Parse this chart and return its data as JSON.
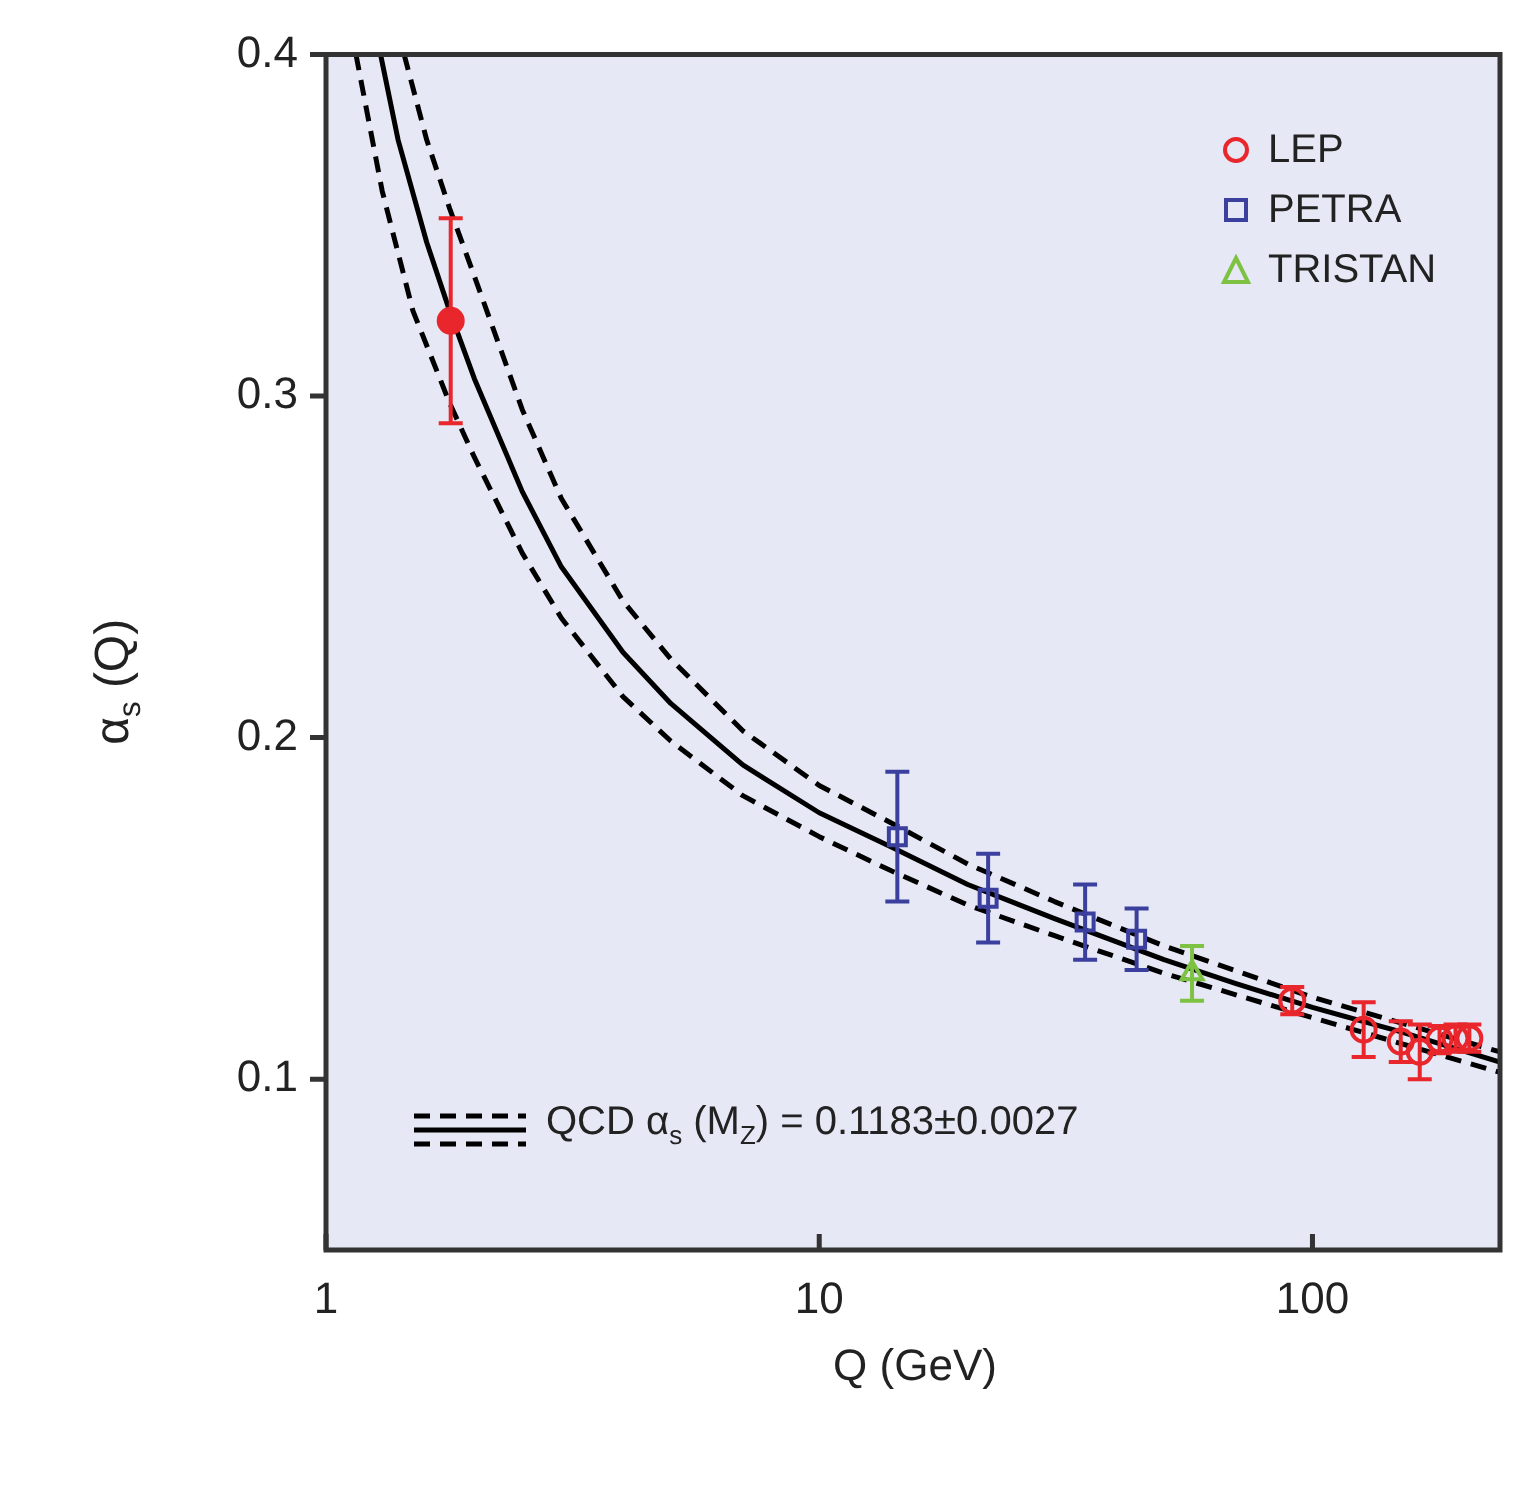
{
  "chart_data": {
    "type": "scatter",
    "xlabel": "Q (GeV)",
    "ylabel": "α$_{s}$ (Q)",
    "log": "x",
    "xlim": [
      1,
      240
    ],
    "xticks": [
      1,
      10,
      100
    ],
    "ylim": [
      0.05,
      0.4
    ],
    "yticks": [
      0.1,
      0.2,
      0.3,
      0.4
    ],
    "grid": false,
    "legend": "top right",
    "series": [
      {
        "name": "LEP",
        "color": "#e8262b",
        "marker": "circle",
        "x": [
          91,
          127,
          151,
          165,
          181,
          195,
          208
        ],
        "values": [
          0.123,
          0.1145,
          0.111,
          0.108,
          0.1116,
          0.112,
          0.112
        ],
        "errors": [
          0.004,
          0.008,
          0.006,
          0.008,
          0.004,
          0.004,
          0.004
        ]
      },
      {
        "name": "PETRA",
        "color": "#3b3f9e",
        "marker": "square",
        "x": [
          14.4,
          22,
          34.6,
          44
        ],
        "values": [
          0.171,
          0.153,
          0.146,
          0.141
        ],
        "errors": [
          0.019,
          0.013,
          0.011,
          0.009
        ]
      },
      {
        "name": "TRISTAN",
        "color": "#7dc242",
        "marker": "triangle",
        "x": [
          57
        ],
        "values": [
          0.131
        ],
        "errors": [
          0.008
        ]
      },
      {
        "color": "#e8262b",
        "marker": "circle",
        "x": [
          1.79
        ],
        "values": [
          0.322
        ],
        "errors": [
          0.03
        ]
      },
      {
        "type": "line",
        "name": "QCD α$_{s}$ (M$_{Z}$) = 0.1183±0.0027",
        "color": "#000000",
        "line_style": "solid",
        "marker": "none",
        "x": [
          1.29,
          1.4,
          1.6,
          1.78,
          2,
          2.5,
          3,
          4,
          5,
          7,
          10,
          14,
          20,
          30,
          50,
          70,
          100,
          150,
          240
        ],
        "values": [
          0.4,
          0.375,
          0.345,
          0.325,
          0.305,
          0.272,
          0.25,
          0.225,
          0.21,
          0.192,
          0.178,
          0.168,
          0.157,
          0.147,
          0.135,
          0.128,
          0.121,
          0.114,
          0.105
        ]
      },
      {
        "type": "line",
        "color": "#000000",
        "line_style": "dashed",
        "marker": "none",
        "x": [
          1.44,
          1.6,
          1.78,
          2,
          2.5,
          3,
          4,
          5,
          7,
          10,
          14,
          20,
          30,
          50,
          100,
          240
        ],
        "values": [
          0.4,
          0.375,
          0.355,
          0.335,
          0.296,
          0.27,
          0.24,
          0.223,
          0.202,
          0.186,
          0.175,
          0.163,
          0.152,
          0.139,
          0.124,
          0.108
        ]
      },
      {
        "type": "line",
        "color": "#000000",
        "line_style": "dashed",
        "marker": "none",
        "x": [
          1.15,
          1.3,
          1.5,
          1.78,
          2,
          2.5,
          3,
          4,
          5,
          7,
          10,
          14,
          20,
          30,
          50,
          100,
          240
        ],
        "values": [
          0.4,
          0.36,
          0.325,
          0.298,
          0.282,
          0.254,
          0.235,
          0.212,
          0.199,
          0.183,
          0.171,
          0.161,
          0.151,
          0.142,
          0.131,
          0.118,
          0.102
        ]
      }
    ]
  }
}
